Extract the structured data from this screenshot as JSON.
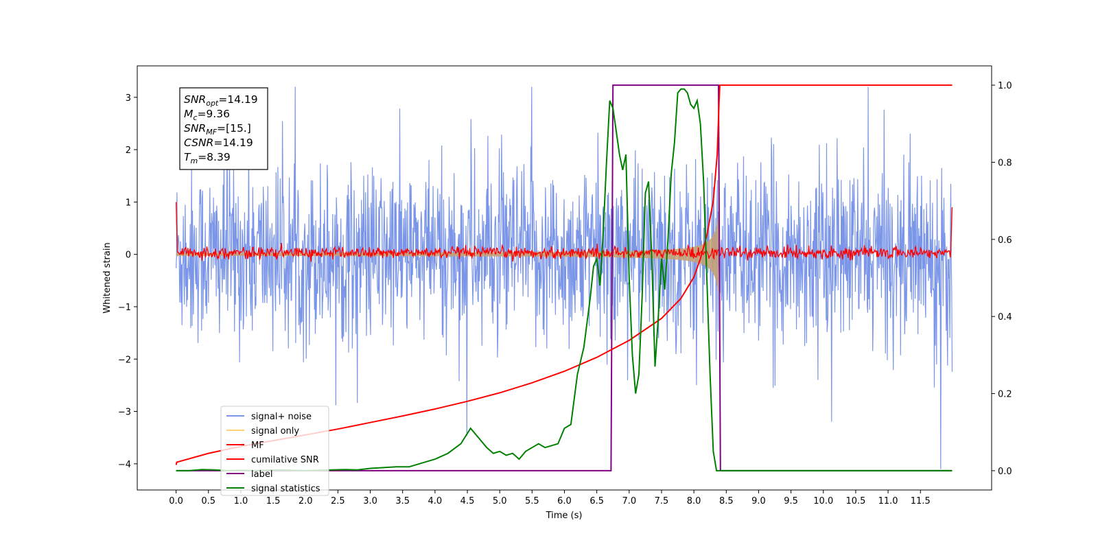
{
  "chart_data": {
    "type": "line",
    "xlabel": "Time (s)",
    "ylabel": "Whitened strain",
    "xlim": [
      -0.6,
      12.6
    ],
    "ylim": [
      -4.5,
      3.6
    ],
    "y2lim": [
      -0.05,
      1.05
    ],
    "xticks": [
      "0.0",
      "0.5",
      "1.0",
      "1.5",
      "2.0",
      "2.5",
      "3.0",
      "3.5",
      "4.0",
      "4.5",
      "5.0",
      "5.5",
      "6.0",
      "6.5",
      "7.0",
      "7.5",
      "8.0",
      "8.5",
      "9.0",
      "9.5",
      "10.0",
      "10.5",
      "11.0",
      "11.5"
    ],
    "xtick_values": [
      0,
      0.5,
      1,
      1.5,
      2,
      2.5,
      3,
      3.5,
      4,
      4.5,
      5,
      5.5,
      6,
      6.5,
      7,
      7.5,
      8,
      8.5,
      9,
      9.5,
      10,
      10.5,
      11,
      11.5
    ],
    "yticks": [
      "−4",
      "−3",
      "−2",
      "−1",
      "0",
      "1",
      "2",
      "3"
    ],
    "ytick_values": [
      -4,
      -3,
      -2,
      -1,
      0,
      1,
      2,
      3
    ],
    "y2ticks": [
      "0.0",
      "0.2",
      "0.4",
      "0.6",
      "0.8",
      "1.0"
    ],
    "y2tick_values": [
      0,
      0.2,
      0.4,
      0.6,
      0.8,
      1.0
    ],
    "colors": {
      "signal_noise": "#7b96e8",
      "signal_only": "#c8a070",
      "mf": "#ff0000",
      "cumulative_snr": "#ff0000",
      "label": "#800080",
      "signal_statistics": "#008000"
    },
    "legend_position": "lower-left",
    "legend": [
      {
        "name": "signal+ noise",
        "color": "#7b96e8"
      },
      {
        "name": "signal only",
        "color": "#ffd27a"
      },
      {
        "name": "MF",
        "color": "#ff0000"
      },
      {
        "name": "cumilative SNR",
        "color": "#ff0000"
      },
      {
        "name": "label",
        "color": "#800080"
      },
      {
        "name": "signal statistics",
        "color": "#008000"
      }
    ],
    "annotation": {
      "lines": [
        {
          "base": "SNR",
          "sub": "opt",
          "value": "=14.19"
        },
        {
          "base": "M",
          "sub": "c",
          "value": "=9.36"
        },
        {
          "base": "SNR",
          "sub": "MF",
          "value": "=[15.]"
        },
        {
          "base": "CSNR",
          "sub": "",
          "value": "=14.19"
        },
        {
          "base": "T",
          "sub": "m",
          "value": "=8.39"
        }
      ]
    },
    "series": [
      {
        "name": "signal statistics",
        "axis": "right",
        "x": [
          0.0,
          0.2,
          0.4,
          0.6,
          0.8,
          1.0,
          1.2,
          1.4,
          1.6,
          1.8,
          2.0,
          2.2,
          2.4,
          2.6,
          2.8,
          3.0,
          3.2,
          3.4,
          3.6,
          3.8,
          4.0,
          4.2,
          4.4,
          4.55,
          4.7,
          4.8,
          4.9,
          5.0,
          5.1,
          5.2,
          5.3,
          5.4,
          5.5,
          5.6,
          5.7,
          5.8,
          5.9,
          6.0,
          6.1,
          6.2,
          6.3,
          6.4,
          6.45,
          6.5,
          6.55,
          6.6,
          6.65,
          6.7,
          6.75,
          6.8,
          6.85,
          6.9,
          6.95,
          7.0,
          7.05,
          7.1,
          7.15,
          7.2,
          7.25,
          7.3,
          7.35,
          7.4,
          7.45,
          7.5,
          7.55,
          7.6,
          7.65,
          7.7,
          7.75,
          7.8,
          7.85,
          7.9,
          7.95,
          8.0,
          8.05,
          8.1,
          8.15,
          8.2,
          8.25,
          8.3,
          8.35,
          8.4,
          8.45,
          8.5,
          8.6,
          9.0,
          10.0,
          11.0,
          11.99
        ],
        "values": [
          0.0,
          0.0,
          0.003,
          0.002,
          0.0,
          0.001,
          0.0,
          0.001,
          0.002,
          0.001,
          0.0,
          0.001,
          0.002,
          0.003,
          0.002,
          0.006,
          0.008,
          0.01,
          0.01,
          0.02,
          0.03,
          0.045,
          0.07,
          0.11,
          0.08,
          0.06,
          0.045,
          0.05,
          0.04,
          0.045,
          0.03,
          0.05,
          0.06,
          0.07,
          0.06,
          0.065,
          0.07,
          0.11,
          0.12,
          0.25,
          0.32,
          0.45,
          0.53,
          0.55,
          0.48,
          0.62,
          0.8,
          0.96,
          0.94,
          0.88,
          0.82,
          0.78,
          0.82,
          0.5,
          0.3,
          0.2,
          0.25,
          0.45,
          0.72,
          0.75,
          0.55,
          0.27,
          0.4,
          0.55,
          0.47,
          0.6,
          0.77,
          0.85,
          0.98,
          0.99,
          0.99,
          0.98,
          0.95,
          0.94,
          0.96,
          0.9,
          0.75,
          0.5,
          0.25,
          0.05,
          0.0,
          0.0,
          0.0,
          0.0,
          0.0,
          0.0,
          0.0,
          0.0,
          0.0
        ]
      },
      {
        "name": "label",
        "axis": "right",
        "x": [
          0.0,
          6.72,
          6.75,
          8.38,
          8.41,
          11.99
        ],
        "values": [
          0,
          0,
          1,
          1,
          0,
          0
        ]
      },
      {
        "name": "cumilative SNR",
        "axis": "right",
        "x": [
          0.0,
          0.01,
          0.5,
          1.0,
          1.5,
          2.0,
          2.5,
          3.0,
          3.5,
          4.0,
          4.5,
          5.0,
          5.5,
          6.0,
          6.5,
          7.0,
          7.5,
          7.8,
          8.0,
          8.1,
          8.2,
          8.3,
          8.36,
          8.39,
          8.4,
          11.99
        ],
        "values": [
          0.015,
          0.022,
          0.045,
          0.063,
          0.078,
          0.093,
          0.108,
          0.125,
          0.142,
          0.16,
          0.18,
          0.202,
          0.228,
          0.258,
          0.294,
          0.338,
          0.395,
          0.447,
          0.502,
          0.55,
          0.61,
          0.7,
          0.82,
          0.96,
          1.0,
          1.0
        ]
      }
    ]
  }
}
